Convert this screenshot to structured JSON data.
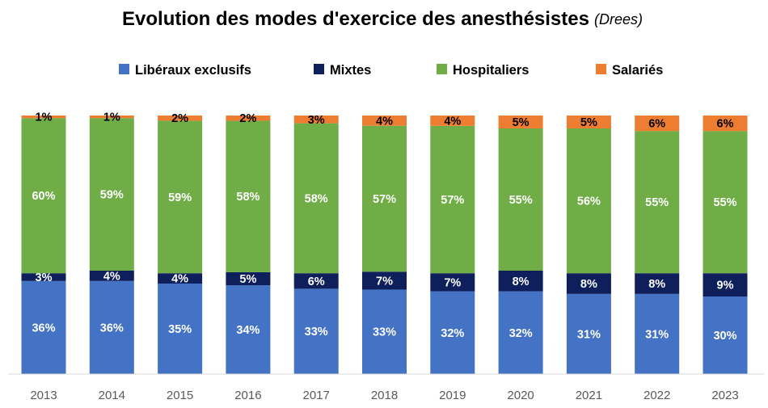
{
  "chart_data": {
    "type": "bar",
    "stacked": true,
    "title": "Evolution des modes d'exercice des anesthésistes",
    "subtitle": "(Drees)",
    "xlabel": "",
    "ylabel": "",
    "categories": [
      "2013",
      "2014",
      "2015",
      "2016",
      "2017",
      "2018",
      "2019",
      "2020",
      "2021",
      "2022",
      "2023"
    ],
    "ylim": [
      0,
      100
    ],
    "grid": false,
    "legend_position": "top",
    "series": [
      {
        "name": "Libéraux exclusifs",
        "color": "#4472C4",
        "label_color": "#ffffff",
        "values": [
          36,
          36,
          35,
          34,
          33,
          33,
          32,
          32,
          31,
          31,
          30
        ],
        "labels": [
          "36%",
          "36%",
          "35%",
          "34%",
          "33%",
          "33%",
          "32%",
          "32%",
          "31%",
          "31%",
          "30%"
        ]
      },
      {
        "name": "Mixtes",
        "color": "#0E1F5B",
        "label_color": "#ffffff",
        "values": [
          3,
          4,
          4,
          5,
          6,
          7,
          7,
          8,
          8,
          8,
          9
        ],
        "labels": [
          "3%",
          "4%",
          "4%",
          "5%",
          "6%",
          "7%",
          "7%",
          "8%",
          "8%",
          "8%",
          "9%"
        ]
      },
      {
        "name": "Hospitaliers",
        "color": "#70AD47",
        "label_color": "#ffffff",
        "values": [
          60,
          59,
          59,
          58,
          58,
          57,
          57,
          55,
          56,
          55,
          55
        ],
        "labels": [
          "60%",
          "59%",
          "59%",
          "58%",
          "58%",
          "57%",
          "57%",
          "55%",
          "56%",
          "55%",
          "55%"
        ]
      },
      {
        "name": "Salariés",
        "color": "#ED7D31",
        "label_color": "#000000",
        "values": [
          1,
          1,
          2,
          2,
          3,
          4,
          4,
          5,
          5,
          6,
          6
        ],
        "labels": [
          "1%",
          "1%",
          "2%",
          "2%",
          "3%",
          "4%",
          "4%",
          "5%",
          "5%",
          "6%",
          "6%"
        ]
      }
    ]
  }
}
